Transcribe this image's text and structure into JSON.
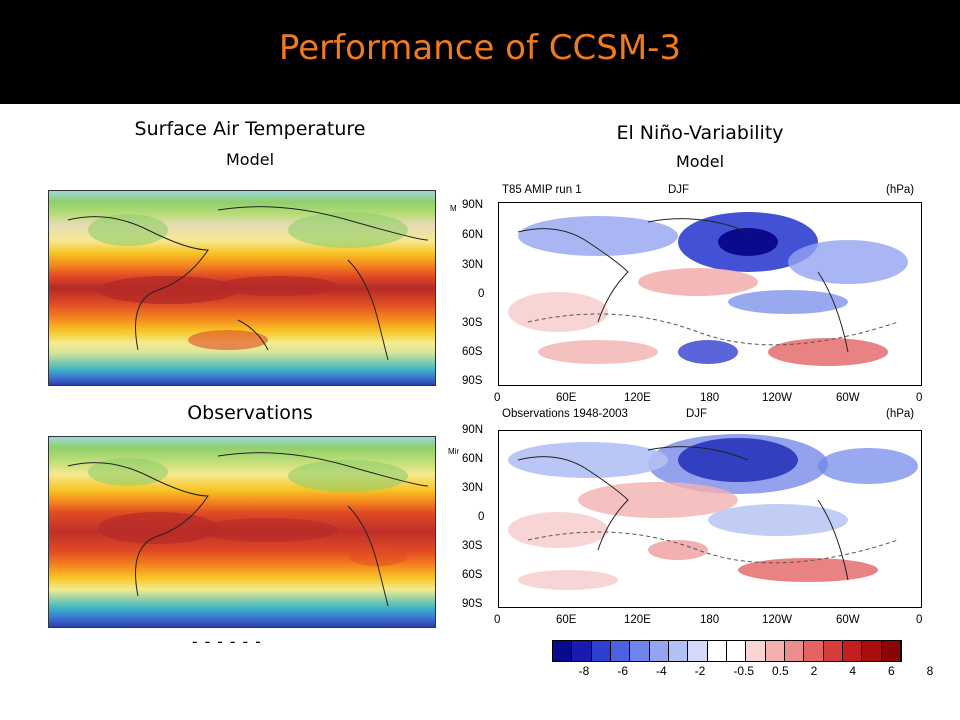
{
  "slide_title": "Performance of CCSM-3",
  "left": {
    "heading": "Surface Air Temperature",
    "model_label": "Model",
    "obs_label": "Observations",
    "dash_legend": "------"
  },
  "right": {
    "heading": "El Niño-Variability",
    "model_label": "Model",
    "top_panel": {
      "left_text": "T85 AMIP run 1",
      "center_text": "DJF",
      "right_text": "(hPa)",
      "side_clip": "M"
    },
    "bottom_panel": {
      "left_text": "Observations 1948-2003",
      "center_text": "DJF",
      "right_text": "(hPa)",
      "side_clip": "Mir"
    },
    "lat_ticks": [
      "90N",
      "60N",
      "30N",
      "0",
      "30S",
      "60S",
      "90S"
    ],
    "lon_ticks": [
      "0",
      "60E",
      "120E",
      "180",
      "120W",
      "60W",
      "0"
    ],
    "colorbar": {
      "labels": [
        "-8",
        "-6",
        "-4",
        "-2",
        "-0.5",
        "0.5",
        "2",
        "4",
        "6",
        "8"
      ],
      "colors": [
        "#0a0a8c",
        "#1a1ab0",
        "#2f3fd0",
        "#4c62e0",
        "#6e84ea",
        "#93a4f0",
        "#b3c0f4",
        "#d2daf8",
        "#ffffff",
        "#ffffff",
        "#f8d4d4",
        "#f2b0b0",
        "#ec8c8c",
        "#e46464",
        "#d83c3c",
        "#c41e1e",
        "#a80e0e",
        "#8a0606"
      ]
    }
  }
}
